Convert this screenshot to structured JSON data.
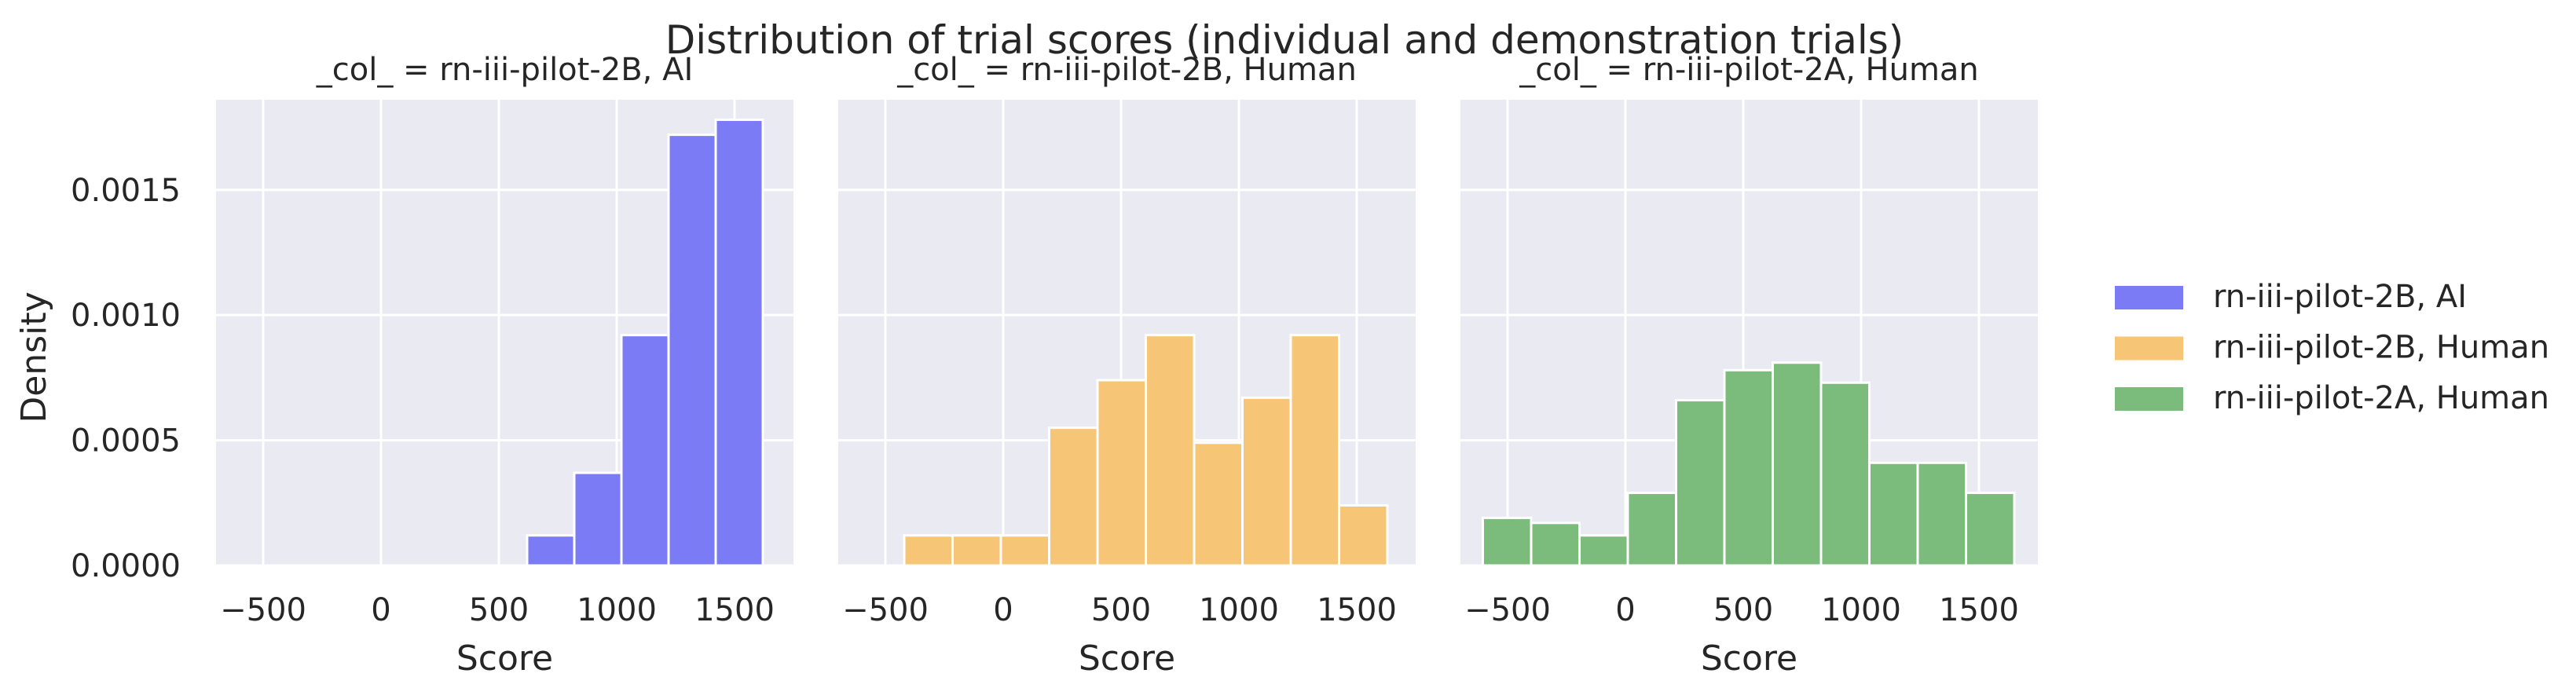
{
  "chart_data": {
    "type": "bar",
    "title": "Distribution of trial scores (individual and demonstration trials)",
    "xlabel": "Score",
    "ylabel": "Density",
    "xlim": [
      -700,
      1750
    ],
    "ylim": [
      0,
      0.00186
    ],
    "grid": true,
    "legend_position": "right",
    "x_ticks": [
      {
        "value": -500,
        "label": "−500"
      },
      {
        "value": 0,
        "label": "0"
      },
      {
        "value": 500,
        "label": "500"
      },
      {
        "value": 1000,
        "label": "1000"
      },
      {
        "value": 1500,
        "label": "1500"
      }
    ],
    "y_ticks": [
      {
        "value": 0,
        "label": "0.0000"
      },
      {
        "value": 0.0005,
        "label": "0.0005"
      },
      {
        "value": 0.001,
        "label": "0.0010"
      },
      {
        "value": 0.0015,
        "label": "0.0015"
      }
    ],
    "series": [
      {
        "name": "rn-iii-pilot-2B, AI",
        "panel_title": "_col_ = rn-iii-pilot-2B, AI",
        "color": "#7b7bf6",
        "bins": [
          {
            "x0": 620,
            "x1": 820,
            "density": 0.00012
          },
          {
            "x0": 820,
            "x1": 1020,
            "density": 0.00037
          },
          {
            "x0": 1020,
            "x1": 1220,
            "density": 0.00092
          },
          {
            "x0": 1220,
            "x1": 1420,
            "density": 0.00172
          },
          {
            "x0": 1420,
            "x1": 1620,
            "density": 0.00178
          }
        ]
      },
      {
        "name": "rn-iii-pilot-2B, Human",
        "panel_title": "_col_ = rn-iii-pilot-2B, Human",
        "color": "#f6c676",
        "bins": [
          {
            "x0": -420,
            "x1": -215,
            "density": 0.00012
          },
          {
            "x0": -215,
            "x1": -10,
            "density": 0.00012
          },
          {
            "x0": -10,
            "x1": 195,
            "density": 0.00012
          },
          {
            "x0": 195,
            "x1": 400,
            "density": 0.00055
          },
          {
            "x0": 400,
            "x1": 605,
            "density": 0.00074
          },
          {
            "x0": 605,
            "x1": 810,
            "density": 0.00092
          },
          {
            "x0": 810,
            "x1": 1015,
            "density": 0.00049
          },
          {
            "x0": 1015,
            "x1": 1220,
            "density": 0.00067
          },
          {
            "x0": 1220,
            "x1": 1425,
            "density": 0.00092
          },
          {
            "x0": 1425,
            "x1": 1630,
            "density": 0.00024
          }
        ]
      },
      {
        "name": "rn-iii-pilot-2A, Human",
        "panel_title": "_col_ = rn-iii-pilot-2A, Human",
        "color": "#7bbb7b",
        "bins": [
          {
            "x0": -605,
            "x1": -400,
            "density": 0.00019
          },
          {
            "x0": -400,
            "x1": -195,
            "density": 0.00017
          },
          {
            "x0": -195,
            "x1": 10,
            "density": 0.00012
          },
          {
            "x0": 10,
            "x1": 215,
            "density": 0.00029
          },
          {
            "x0": 215,
            "x1": 420,
            "density": 0.00066
          },
          {
            "x0": 420,
            "x1": 625,
            "density": 0.00078
          },
          {
            "x0": 625,
            "x1": 830,
            "density": 0.00081
          },
          {
            "x0": 830,
            "x1": 1035,
            "density": 0.00073
          },
          {
            "x0": 1035,
            "x1": 1240,
            "density": 0.00041
          },
          {
            "x0": 1240,
            "x1": 1445,
            "density": 0.00041
          },
          {
            "x0": 1445,
            "x1": 1650,
            "density": 0.00029
          }
        ]
      }
    ]
  },
  "style": {
    "panel_background": "#eaeaf2",
    "grid_color": "#ffffff",
    "bar_edge_color": "#ffffff"
  }
}
